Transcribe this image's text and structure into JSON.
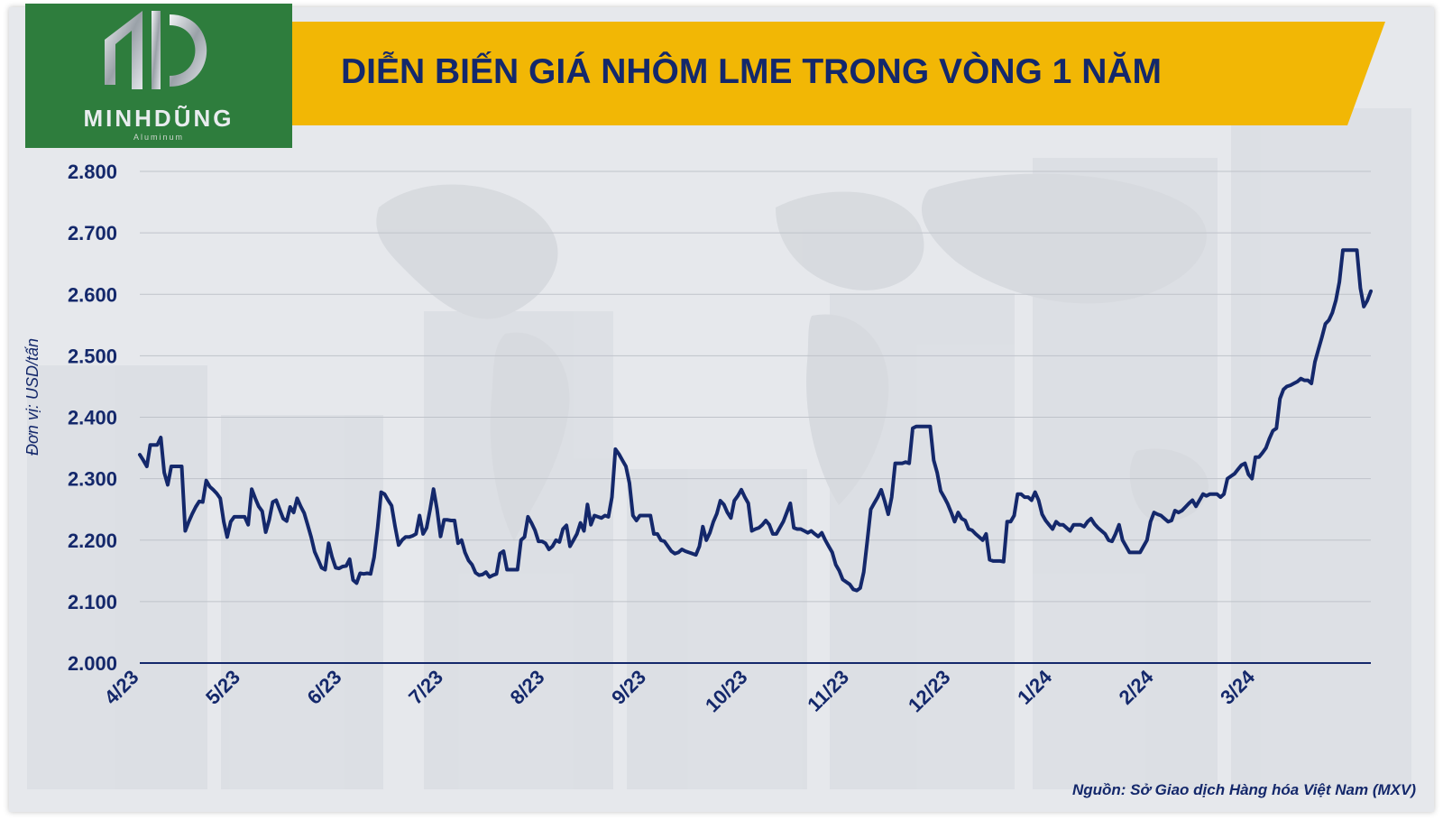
{
  "logo": {
    "name": "MINHDŨNG",
    "tagline": "Aluminum"
  },
  "header": {
    "title": "DIỄN BIẾN GIÁ NHÔM LME TRONG VÒNG 1 NĂM"
  },
  "footer": {
    "source": "Nguồn: Sở Giao dịch Hàng hóa Việt Nam (MXV)"
  },
  "colors": {
    "line": "#14286b",
    "banner": "#f2b705",
    "logo_bg": "#2e7d3d",
    "background": "#e6e8ec",
    "grid": "#bfc3ca"
  },
  "chart_data": {
    "type": "line",
    "title": "DIỄN BIẾN GIÁ NHÔM LME TRONG VÒNG 1 NĂM",
    "ylabel": "Đơn vị: USD/tấn",
    "xlabel": "",
    "ylim": [
      2000,
      2800
    ],
    "yticks": [
      2000,
      2100,
      2200,
      2300,
      2400,
      2500,
      2600,
      2700,
      2800
    ],
    "ytick_labels": [
      "2.000",
      "2.100",
      "2.200",
      "2.300",
      "2.400",
      "2.500",
      "2.600",
      "2.700",
      "2.800"
    ],
    "xticks": [
      "4/23",
      "5/23",
      "6/23",
      "7/23",
      "8/23",
      "9/23",
      "10/23",
      "11/23",
      "12/23",
      "1/24",
      "2/24",
      "3/24"
    ],
    "grid": true,
    "series": [
      {
        "name": "",
        "values": [
          2339,
          2330,
          2320,
          2355,
          2355,
          2355,
          2367,
          2310,
          2290,
          2320,
          2320,
          2320,
          2320,
          2215,
          2230,
          2243,
          2254,
          2263,
          2262,
          2297,
          2287,
          2282,
          2276,
          2268,
          2230,
          2205,
          2230,
          2238,
          2238,
          2238,
          2238,
          2225,
          2283,
          2268,
          2255,
          2247,
          2213,
          2233,
          2262,
          2265,
          2250,
          2235,
          2231,
          2254,
          2245,
          2268,
          2255,
          2244,
          2225,
          2205,
          2181,
          2168,
          2155,
          2152,
          2195,
          2172,
          2155,
          2154,
          2157,
          2158,
          2169,
          2135,
          2130,
          2146,
          2145,
          2146,
          2145,
          2172,
          2220,
          2278,
          2275,
          2265,
          2256,
          2222,
          2192,
          2200,
          2205,
          2205,
          2207,
          2210,
          2240,
          2210,
          2220,
          2250,
          2283,
          2250,
          2206,
          2233,
          2233,
          2232,
          2232,
          2195,
          2200,
          2180,
          2167,
          2160,
          2147,
          2143,
          2144,
          2148,
          2140,
          2143,
          2145,
          2178,
          2182,
          2152,
          2152,
          2152,
          2152,
          2200,
          2205,
          2238,
          2228,
          2216,
          2198,
          2198,
          2195,
          2185,
          2190,
          2200,
          2197,
          2218,
          2224,
          2190,
          2200,
          2210,
          2228,
          2215,
          2258,
          2225,
          2240,
          2238,
          2236,
          2240,
          2238,
          2270,
          2348,
          2340,
          2330,
          2320,
          2293,
          2240,
          2232,
          2240,
          2240,
          2240,
          2240,
          2210,
          2210,
          2200,
          2198,
          2190,
          2182,
          2178,
          2180,
          2185,
          2182,
          2180,
          2178,
          2176,
          2190,
          2222,
          2200,
          2212,
          2230,
          2243,
          2264,
          2258,
          2245,
          2236,
          2264,
          2272,
          2282,
          2270,
          2260,
          2215,
          2218,
          2220,
          2225,
          2232,
          2225,
          2210,
          2210,
          2220,
          2230,
          2245,
          2260,
          2220,
          2218,
          2218,
          2215,
          2212,
          2215,
          2210,
          2206,
          2212,
          2200,
          2190,
          2180,
          2160,
          2150,
          2136,
          2132,
          2128,
          2120,
          2118,
          2122,
          2148,
          2198,
          2250,
          2260,
          2270,
          2282,
          2263,
          2242,
          2270,
          2325,
          2325,
          2325,
          2327,
          2325,
          2382,
          2385,
          2385,
          2385,
          2385,
          2385,
          2330,
          2310,
          2280,
          2270,
          2259,
          2245,
          2230,
          2245,
          2235,
          2232,
          2218,
          2216,
          2210,
          2205,
          2200,
          2210,
          2168,
          2166,
          2166,
          2166,
          2165,
          2230,
          2230,
          2240,
          2275,
          2275,
          2270,
          2270,
          2265,
          2278,
          2265,
          2242,
          2232,
          2225,
          2218,
          2230,
          2225,
          2225,
          2220,
          2215,
          2225,
          2225,
          2225,
          2222,
          2230,
          2235,
          2226,
          2220,
          2215,
          2210,
          2200,
          2198,
          2210,
          2225,
          2200,
          2190,
          2180,
          2180,
          2180,
          2180,
          2190,
          2200,
          2230,
          2245,
          2242,
          2240,
          2235,
          2230,
          2232,
          2248,
          2245,
          2248,
          2254,
          2260,
          2265,
          2255,
          2265,
          2275,
          2272,
          2275,
          2275,
          2275,
          2270,
          2275,
          2300,
          2304,
          2308,
          2315,
          2322,
          2325,
          2307,
          2300,
          2335,
          2335,
          2342,
          2350,
          2365,
          2378,
          2382,
          2430,
          2445,
          2450,
          2452,
          2455,
          2458,
          2463,
          2460,
          2460,
          2455,
          2490,
          2510,
          2530,
          2552,
          2558,
          2570,
          2590,
          2620,
          2672,
          2672,
          2672,
          2672,
          2672,
          2610,
          2580,
          2590,
          2605
        ]
      }
    ]
  }
}
